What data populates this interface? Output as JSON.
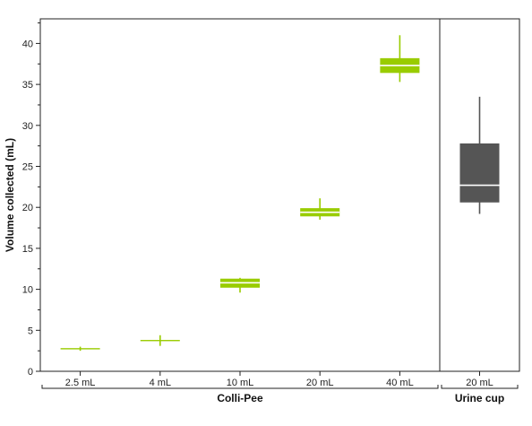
{
  "chart_data": {
    "type": "box",
    "ylabel": "Volume collected (mL)",
    "ylim": [
      0,
      43
    ],
    "yticks": [
      0,
      5,
      10,
      15,
      20,
      25,
      30,
      35,
      40
    ],
    "ytick_labels": [
      "0",
      "5",
      "10",
      "15",
      "20",
      "25",
      "30",
      "35",
      "40"
    ],
    "grid": false,
    "colors": {
      "colli_pee": "#99cc00",
      "urine_cup": "#555555",
      "median_on_dark": "#ffffff"
    },
    "groups": [
      {
        "label": "Colli-Pee",
        "categories": [
          "2.5 mL",
          "4 mL",
          "10 mL",
          "20 mL",
          "40 mL"
        ]
      },
      {
        "label": "Urine cup",
        "categories": [
          "20 mL"
        ]
      }
    ],
    "boxes": [
      {
        "group": 0,
        "category": "2.5 mL",
        "whisker_low": 2.5,
        "q1": 2.7,
        "median": 2.75,
        "q3": 2.8,
        "whisker_high": 3.0
      },
      {
        "group": 0,
        "category": "4 mL",
        "whisker_low": 3.1,
        "q1": 3.7,
        "median": 3.75,
        "q3": 3.8,
        "whisker_high": 4.4
      },
      {
        "group": 0,
        "category": "10 mL",
        "whisker_low": 9.6,
        "q1": 10.2,
        "median": 10.8,
        "q3": 11.3,
        "whisker_high": 11.4
      },
      {
        "group": 0,
        "category": "20 mL",
        "whisker_low": 18.5,
        "q1": 18.9,
        "median": 19.4,
        "q3": 19.9,
        "whisker_high": 21.1
      },
      {
        "group": 0,
        "category": "40 mL",
        "whisker_low": 35.3,
        "q1": 36.4,
        "median": 37.3,
        "q3": 38.2,
        "whisker_high": 41.0
      },
      {
        "group": 1,
        "category": "20 mL",
        "whisker_low": 19.2,
        "q1": 20.6,
        "median": 22.7,
        "q3": 27.8,
        "whisker_high": 33.5
      }
    ]
  }
}
